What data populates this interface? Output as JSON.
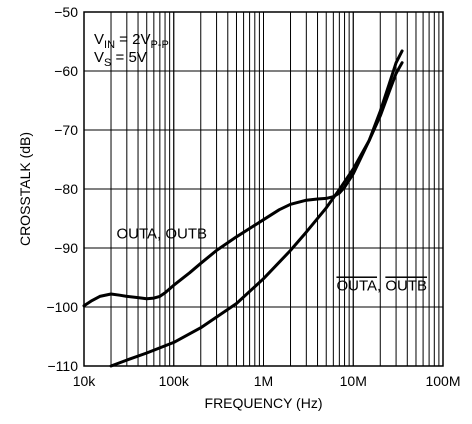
{
  "chart_data": {
    "type": "line",
    "xlabel": "FREQUENCY (Hz)",
    "ylabel": "CROSSTALK (dB)",
    "x_scale": "log",
    "xlim": [
      10000,
      100000000
    ],
    "ylim": [
      -110,
      -50
    ],
    "x_ticks": [
      {
        "value": 10000,
        "label": "10k"
      },
      {
        "value": 100000,
        "label": "100k"
      },
      {
        "value": 1000000,
        "label": "1M"
      },
      {
        "value": 10000000,
        "label": "10M"
      },
      {
        "value": 100000000,
        "label": "100M"
      }
    ],
    "y_ticks": [
      {
        "value": -50,
        "label": "−50"
      },
      {
        "value": -60,
        "label": "−60"
      },
      {
        "value": -70,
        "label": "−70"
      },
      {
        "value": -80,
        "label": "−80"
      },
      {
        "value": -90,
        "label": "−90"
      },
      {
        "value": -100,
        "label": "−100"
      },
      {
        "value": -110,
        "label": "−110"
      }
    ],
    "grid": true,
    "conditions": {
      "vin_main": "V",
      "vin_sub": "IN",
      "vin_value": " = 2V",
      "vin_unit_sub": "P-P",
      "vs_main": "V",
      "vs_sub": "S",
      "vs_value": " = 5V"
    },
    "series": [
      {
        "name": "OUTA, OUTB",
        "overline": false,
        "x": [
          10000,
          12000,
          15000,
          20000,
          25000,
          30000,
          40000,
          50000,
          60000,
          70000,
          80000,
          100000,
          150000,
          200000,
          300000,
          500000,
          700000,
          1000000,
          1500000,
          2000000,
          3000000,
          4000000,
          5000000,
          6000000,
          7000000,
          8000000,
          10000000,
          15000000,
          20000000,
          25000000,
          30000000,
          35000000
        ],
        "y": [
          -99.8,
          -99.0,
          -98.2,
          -97.8,
          -98.0,
          -98.2,
          -98.4,
          -98.6,
          -98.5,
          -98.2,
          -97.6,
          -96.3,
          -94.2,
          -92.6,
          -90.4,
          -88.1,
          -86.7,
          -85.2,
          -83.5,
          -82.6,
          -81.9,
          -81.7,
          -81.6,
          -81.3,
          -80.7,
          -79.7,
          -77.4,
          -71.8,
          -66.8,
          -62.3,
          -58.6,
          -56.6
        ]
      },
      {
        "name": "OUTA, OUTB",
        "overline": true,
        "x": [
          20000,
          30000,
          50000,
          100000,
          200000,
          500000,
          1000000,
          2000000,
          3000000,
          5000000,
          7000000,
          10000000,
          15000000,
          20000000,
          25000000,
          30000000,
          35000000
        ],
        "y": [
          -110,
          -109,
          -107.8,
          -106,
          -103.5,
          -99.4,
          -95.2,
          -90.4,
          -87.3,
          -83.2,
          -80.1,
          -76.6,
          -71.8,
          -67.6,
          -63.6,
          -60.4,
          -58.6
        ]
      }
    ],
    "annotations": [
      {
        "text": "OUTA, OUTB",
        "overline": false,
        "x": 23000,
        "y": -88.4
      },
      {
        "text": "OUTA, OUTB",
        "overline": true,
        "x": 6500000,
        "y": -97.2
      }
    ]
  }
}
